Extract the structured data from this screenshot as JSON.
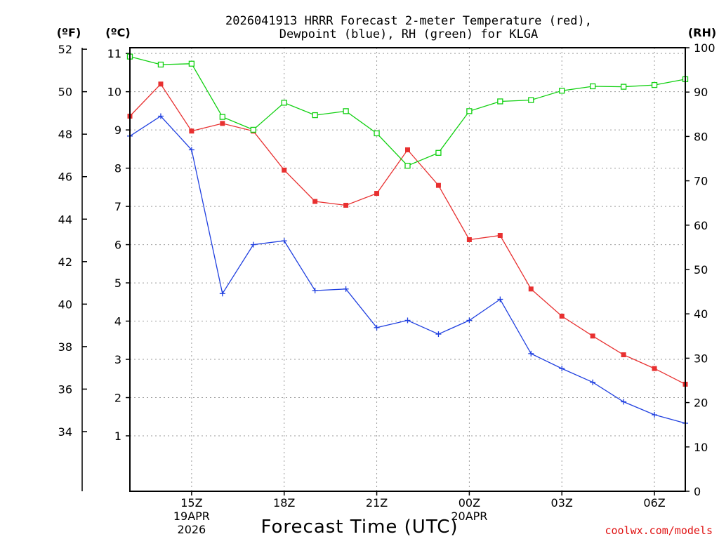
{
  "chart_data": {
    "type": "line",
    "title_line1": "2026041913 HRRR Forecast 2-meter Temperature (red),",
    "title_line2": "Dewpoint (blue), RH (green) for KLGA",
    "xlabel": "Forecast Time (UTC)",
    "credit": "coolwx.com/models",
    "units": {
      "fahrenheit": "(ºF)",
      "celsius": "(ºC)",
      "rh": "(RH)"
    },
    "x_hours": [
      13,
      14,
      15,
      16,
      17,
      18,
      19,
      20,
      21,
      22,
      23,
      24,
      25,
      26,
      27,
      28,
      29,
      30,
      31
    ],
    "x_ticks": [
      {
        "hour": 15,
        "label": "15Z",
        "date": "19APR",
        "year": "2026"
      },
      {
        "hour": 18,
        "label": "18Z"
      },
      {
        "hour": 21,
        "label": "21Z"
      },
      {
        "hour": 24,
        "label": "00Z",
        "date": "20APR"
      },
      {
        "hour": 27,
        "label": "03Z"
      },
      {
        "hour": 30,
        "label": "06Z"
      }
    ],
    "celsius_axis": {
      "ylim": [
        -0.45,
        11.15
      ],
      "ticks": [
        1,
        2,
        3,
        4,
        5,
        6,
        7,
        8,
        9,
        10,
        11
      ]
    },
    "fahrenheit_axis": {
      "ticks": [
        34,
        36,
        38,
        40,
        42,
        44,
        46,
        48,
        50,
        52
      ]
    },
    "rh_axis": {
      "ylim": [
        0,
        100
      ],
      "ticks": [
        0,
        10,
        20,
        30,
        40,
        50,
        60,
        70,
        80,
        90,
        100
      ]
    },
    "series": [
      {
        "name": "Temperature",
        "unit": "C",
        "color": "#e83030",
        "marker": "square-filled",
        "values": [
          9.36,
          10.2,
          8.97,
          9.17,
          8.97,
          7.95,
          7.13,
          7.03,
          7.34,
          8.48,
          7.55,
          6.13,
          6.24,
          4.84,
          4.13,
          3.61,
          3.12,
          2.76,
          2.35
        ]
      },
      {
        "name": "Dewpoint",
        "unit": "C",
        "color": "#2040e0",
        "marker": "plus",
        "values": [
          8.84,
          9.36,
          8.48,
          4.72,
          6.0,
          6.1,
          4.8,
          4.84,
          3.83,
          4.02,
          3.66,
          4.02,
          4.57,
          3.15,
          2.76,
          2.4,
          1.89,
          1.55,
          1.33
        ]
      },
      {
        "name": "RH",
        "unit": "%",
        "color": "#10d010",
        "marker": "square-open",
        "values": [
          98,
          96.2,
          96.4,
          84.4,
          81.5,
          87.6,
          84.8,
          85.7,
          80.7,
          73.4,
          76.3,
          85.7,
          87.9,
          88.2,
          90.3,
          91.3,
          91.2,
          91.6,
          92.9
        ]
      }
    ]
  }
}
